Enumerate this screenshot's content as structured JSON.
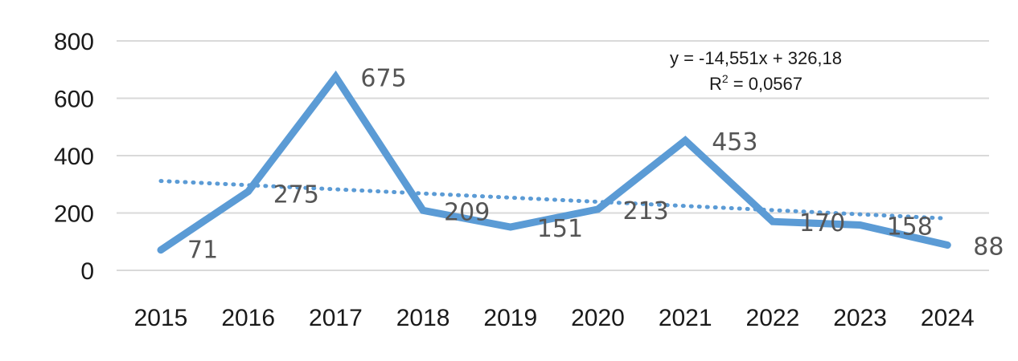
{
  "chart_data": {
    "type": "line",
    "title": "",
    "xlabel": "",
    "ylabel": "",
    "categories": [
      "2015",
      "2016",
      "2017",
      "2018",
      "2019",
      "2020",
      "2021",
      "2022",
      "2023",
      "2024"
    ],
    "series": [
      {
        "values": [
          71,
          275,
          675,
          209,
          151,
          213,
          453,
          170,
          158,
          88
        ],
        "data_labels": [
          "71",
          "275",
          "675",
          "209",
          "151",
          "213",
          "453",
          "170",
          "158",
          "88"
        ],
        "color": "#5b9bd5"
      }
    ],
    "trendline": {
      "type": "linear",
      "style": "dotted",
      "color": "#5b9bd5",
      "equation": "y = -14,551x + 326,18",
      "r_squared_prefix": "R",
      "r_squared_exponent": "2",
      "r_squared_value": " = 0,0567"
    },
    "ylim": [
      0,
      800
    ],
    "yticks": [
      "0",
      "200",
      "400",
      "600",
      "800"
    ],
    "grid": true,
    "legend": "none",
    "gridline_color": "#d9d9d9"
  }
}
